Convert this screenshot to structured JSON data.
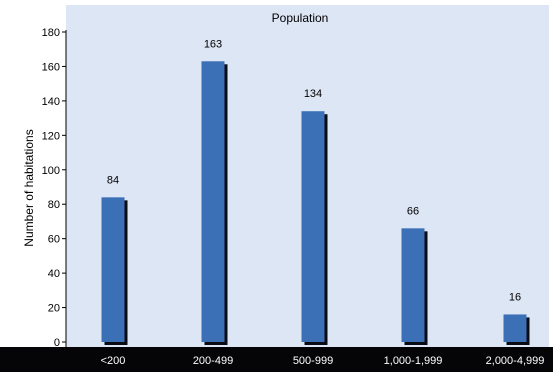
{
  "chart_data": {
    "type": "bar",
    "title": "Population",
    "xlabel": "",
    "ylabel": "Number of habitations",
    "categories": [
      "<200",
      "200-499",
      "500-999",
      "1,000-1,999",
      "2,000-4,999"
    ],
    "values": [
      84,
      163,
      134,
      66,
      16
    ],
    "ylim": [
      0,
      180
    ],
    "yticks": [
      0,
      20,
      40,
      60,
      80,
      100,
      120,
      140,
      160,
      180
    ],
    "grid": false,
    "legend": "none",
    "colors": {
      "plot_background": "#dde6f4",
      "bar_fill": "#3b6fb6",
      "bar_shadow": "#0b0b14",
      "xaxis_band": "#050507",
      "xaxis_label_text": "#ffffff",
      "text": "#000000"
    }
  }
}
